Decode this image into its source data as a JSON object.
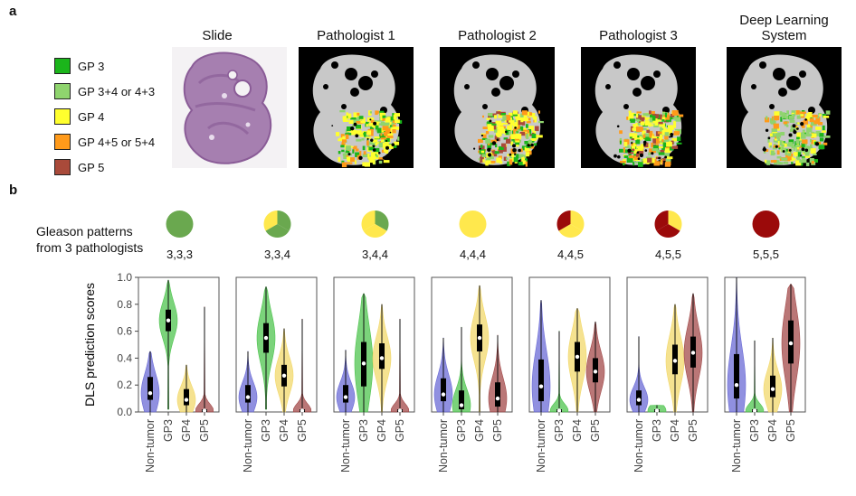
{
  "panel_a": {
    "letter": "a",
    "legend": [
      {
        "label": "GP 3",
        "color": "#1bb51b"
      },
      {
        "label": "GP 3+4 or 4+3",
        "color": "#8fd46e"
      },
      {
        "label": "GP 4",
        "color": "#ffff2e"
      },
      {
        "label": "GP 4+5 or 5+4",
        "color": "#ff9a1a"
      },
      {
        "label": "GP 5",
        "color": "#a94a3a"
      }
    ],
    "columns": [
      {
        "title": "Slide"
      },
      {
        "title": "Pathologist 1"
      },
      {
        "title": "Pathologist 2"
      },
      {
        "title": "Pathologist 3"
      },
      {
        "title": "Deep Learning System"
      }
    ]
  },
  "panel_b": {
    "letter": "b",
    "row_label_line1": "Gleason patterns",
    "row_label_line2": "from 3 pathologists",
    "combinations": [
      {
        "label": "3,3,3",
        "slices": [
          3,
          3,
          3
        ]
      },
      {
        "label": "3,3,4",
        "slices": [
          3,
          3,
          4
        ]
      },
      {
        "label": "3,4,4",
        "slices": [
          3,
          4,
          4
        ]
      },
      {
        "label": "4,4,4",
        "slices": [
          4,
          4,
          4
        ]
      },
      {
        "label": "4,4,5",
        "slices": [
          4,
          4,
          5
        ]
      },
      {
        "label": "4,5,5",
        "slices": [
          4,
          5,
          5
        ]
      },
      {
        "label": "5,5,5",
        "slices": [
          5,
          5,
          5
        ]
      }
    ],
    "pattern_colors": {
      "3": "#6aa84f",
      "4": "#ffe84d",
      "5": "#9b0a0a"
    }
  },
  "chart_data": {
    "type": "violin",
    "ylabel": "DLS prediction scores",
    "ylim": [
      0.0,
      1.0
    ],
    "yticks": [
      "0.0",
      "0.2",
      "0.4",
      "0.6",
      "0.8",
      "1.0"
    ],
    "categories": [
      "Non-tumor",
      "GP3",
      "GP4",
      "GP5"
    ],
    "category_colors": [
      "#6b6bd6",
      "#4fc44f",
      "#f2d86b",
      "#a34a4a"
    ],
    "panels": [
      {
        "group": "3,3,3",
        "series": [
          {
            "category": "Non-tumor",
            "median": 0.14,
            "q1": 0.09,
            "q3": 0.26,
            "min": 0.0,
            "max": 0.45
          },
          {
            "category": "GP3",
            "median": 0.68,
            "q1": 0.6,
            "q3": 0.76,
            "min": 0.02,
            "max": 0.98
          },
          {
            "category": "GP4",
            "median": 0.09,
            "q1": 0.05,
            "q3": 0.17,
            "min": 0.0,
            "max": 0.35
          },
          {
            "category": "GP5",
            "median": 0.01,
            "q1": 0.0,
            "q3": 0.02,
            "min": 0.0,
            "max": 0.78
          }
        ]
      },
      {
        "group": "3,3,4",
        "series": [
          {
            "category": "Non-tumor",
            "median": 0.11,
            "q1": 0.07,
            "q3": 0.2,
            "min": 0.0,
            "max": 0.45
          },
          {
            "category": "GP3",
            "median": 0.55,
            "q1": 0.44,
            "q3": 0.66,
            "min": 0.02,
            "max": 0.93
          },
          {
            "category": "GP4",
            "median": 0.27,
            "q1": 0.19,
            "q3": 0.35,
            "min": 0.0,
            "max": 0.62
          },
          {
            "category": "GP5",
            "median": 0.01,
            "q1": 0.0,
            "q3": 0.02,
            "min": 0.0,
            "max": 0.69
          }
        ]
      },
      {
        "group": "3,4,4",
        "series": [
          {
            "category": "Non-tumor",
            "median": 0.11,
            "q1": 0.07,
            "q3": 0.2,
            "min": 0.0,
            "max": 0.46
          },
          {
            "category": "GP3",
            "median": 0.36,
            "q1": 0.19,
            "q3": 0.52,
            "min": 0.0,
            "max": 0.88
          },
          {
            "category": "GP4",
            "median": 0.4,
            "q1": 0.32,
            "q3": 0.51,
            "min": 0.0,
            "max": 0.8
          },
          {
            "category": "GP5",
            "median": 0.01,
            "q1": 0.0,
            "q3": 0.02,
            "min": 0.0,
            "max": 0.69
          }
        ]
      },
      {
        "group": "4,4,4",
        "series": [
          {
            "category": "Non-tumor",
            "median": 0.13,
            "q1": 0.08,
            "q3": 0.25,
            "min": 0.0,
            "max": 0.55
          },
          {
            "category": "GP3",
            "median": 0.05,
            "q1": 0.02,
            "q3": 0.16,
            "min": 0.0,
            "max": 0.63
          },
          {
            "category": "GP4",
            "median": 0.55,
            "q1": 0.45,
            "q3": 0.65,
            "min": 0.0,
            "max": 0.94
          },
          {
            "category": "GP5",
            "median": 0.1,
            "q1": 0.04,
            "q3": 0.22,
            "min": 0.0,
            "max": 0.57
          }
        ]
      },
      {
        "group": "4,4,5",
        "series": [
          {
            "category": "Non-tumor",
            "median": 0.19,
            "q1": 0.08,
            "q3": 0.39,
            "min": 0.0,
            "max": 0.83
          },
          {
            "category": "GP3",
            "median": 0.01,
            "q1": 0.0,
            "q3": 0.02,
            "min": 0.0,
            "max": 0.6
          },
          {
            "category": "GP4",
            "median": 0.41,
            "q1": 0.3,
            "q3": 0.52,
            "min": 0.0,
            "max": 0.77
          },
          {
            "category": "GP5",
            "median": 0.3,
            "q1": 0.22,
            "q3": 0.4,
            "min": 0.0,
            "max": 0.67
          }
        ]
      },
      {
        "group": "4,5,5",
        "series": [
          {
            "category": "Non-tumor",
            "median": 0.09,
            "q1": 0.05,
            "q3": 0.16,
            "min": 0.0,
            "max": 0.56
          },
          {
            "category": "GP3",
            "median": 0.01,
            "q1": 0.0,
            "q3": 0.02,
            "min": 0.0,
            "max": 0.05
          },
          {
            "category": "GP4",
            "median": 0.38,
            "q1": 0.28,
            "q3": 0.5,
            "min": 0.0,
            "max": 0.8
          },
          {
            "category": "GP5",
            "median": 0.44,
            "q1": 0.33,
            "q3": 0.56,
            "min": 0.0,
            "max": 0.88
          }
        ]
      },
      {
        "group": "5,5,5",
        "series": [
          {
            "category": "Non-tumor",
            "median": 0.2,
            "q1": 0.1,
            "q3": 0.43,
            "min": 0.0,
            "max": 1.0
          },
          {
            "category": "GP3",
            "median": 0.01,
            "q1": 0.0,
            "q3": 0.02,
            "min": 0.0,
            "max": 0.53
          },
          {
            "category": "GP4",
            "median": 0.17,
            "q1": 0.11,
            "q3": 0.27,
            "min": 0.0,
            "max": 0.55
          },
          {
            "category": "GP5",
            "median": 0.51,
            "q1": 0.36,
            "q3": 0.68,
            "min": 0.0,
            "max": 0.95
          }
        ]
      }
    ]
  }
}
